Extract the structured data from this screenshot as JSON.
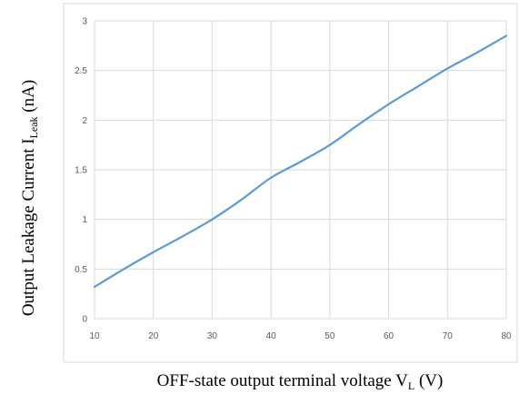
{
  "chart_data": {
    "type": "line",
    "x": [
      10,
      15,
      20,
      25,
      30,
      35,
      40,
      45,
      50,
      55,
      60,
      65,
      70,
      75,
      80
    ],
    "series": [
      {
        "values": [
          0.32,
          0.5,
          0.67,
          0.83,
          1.0,
          1.2,
          1.42,
          1.58,
          1.75,
          1.96,
          2.16,
          2.34,
          2.52,
          2.68,
          2.85
        ]
      }
    ],
    "xlim": [
      10,
      80
    ],
    "ylim": [
      0,
      3
    ],
    "x_ticks": [
      "10",
      "20",
      "30",
      "40",
      "50",
      "60",
      "70",
      "80"
    ],
    "y_ticks": [
      "0",
      "0.5",
      "1",
      "1.5",
      "2",
      "2.5",
      "3"
    ],
    "xlabel": {
      "main": "OFF-state output terminal voltage V",
      "sub": "L",
      "unit": " (V)"
    },
    "ylabel": {
      "main": "Output Leakage Current   I",
      "sub": "Leak",
      "unit": " (nA)"
    },
    "grid": true,
    "line_color": "#5b9bd5",
    "grid_color": "#d9d9d9",
    "frame_color": "#d9d9d9"
  }
}
